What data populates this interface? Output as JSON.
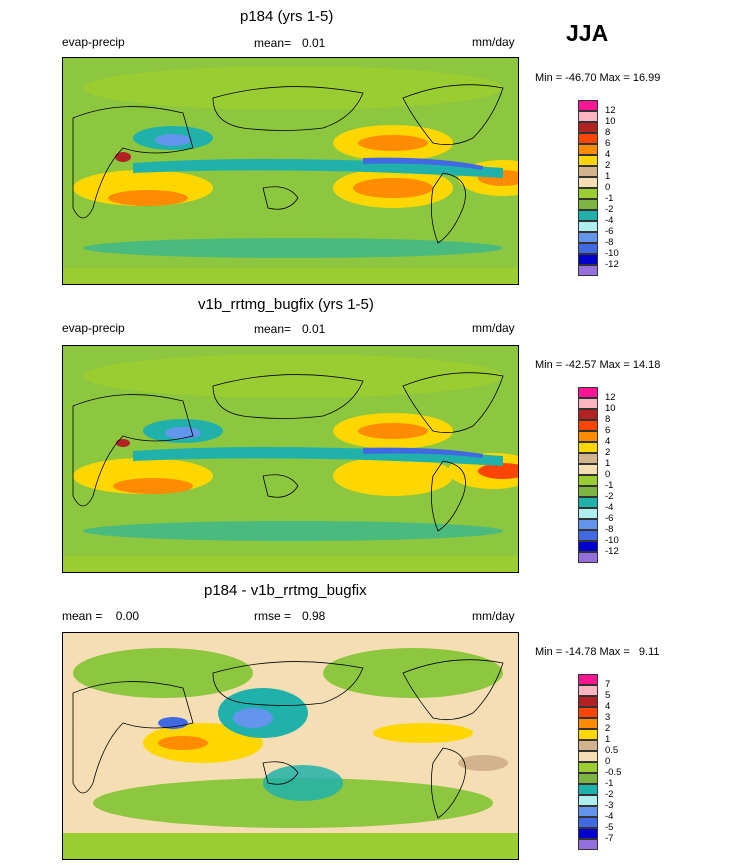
{
  "season": "JJA",
  "units": "mm/day",
  "panels": [
    {
      "title": "p184 (yrs 1-5)",
      "left_label": "evap-precip",
      "mean_label": "mean=",
      "mean_value": "0.01",
      "units": "mm/day",
      "minmax": "Min = -46.70 Max =  16.99",
      "levels": [
        "12",
        "10",
        "8",
        "6",
        "4",
        "2",
        "1",
        "0",
        "-1",
        "-2",
        "-4",
        "-6",
        "-8",
        "-10",
        "-12"
      ]
    },
    {
      "title": "v1b_rrtmg_bugfix (yrs 1-5)",
      "left_label": "evap-precip",
      "mean_label": "mean=",
      "mean_value": "0.01",
      "units": "mm/day",
      "minmax": "Min = -42.57 Max =  14.18",
      "levels": [
        "12",
        "10",
        "8",
        "6",
        "4",
        "2",
        "1",
        "0",
        "-1",
        "-2",
        "-4",
        "-6",
        "-8",
        "-10",
        "-12"
      ]
    },
    {
      "title": "p184 - v1b_rrtmg_bugfix",
      "left_label": "mean =    0.00",
      "mean_label": "rmse =",
      "mean_value": "0.98",
      "units": "mm/day",
      "minmax": "Min = -14.78 Max =   9.11",
      "levels": [
        "7",
        "5",
        "4",
        "3",
        "2",
        "1",
        "0.5",
        "0",
        "-0.5",
        "-1",
        "-2",
        "-3",
        "-4",
        "-5",
        "-7"
      ]
    }
  ],
  "colors": {
    "scale": [
      "#ff1493",
      "#ffb6c1",
      "#b22222",
      "#ff4500",
      "#ff8c00",
      "#ffd700",
      "#d2b48c",
      "#f5deb3",
      "#9acd32",
      "#7cb342",
      "#20b2aa",
      "#afeeee",
      "#6495ed",
      "#4169e1",
      "#0000cd",
      "#9370db"
    ]
  }
}
